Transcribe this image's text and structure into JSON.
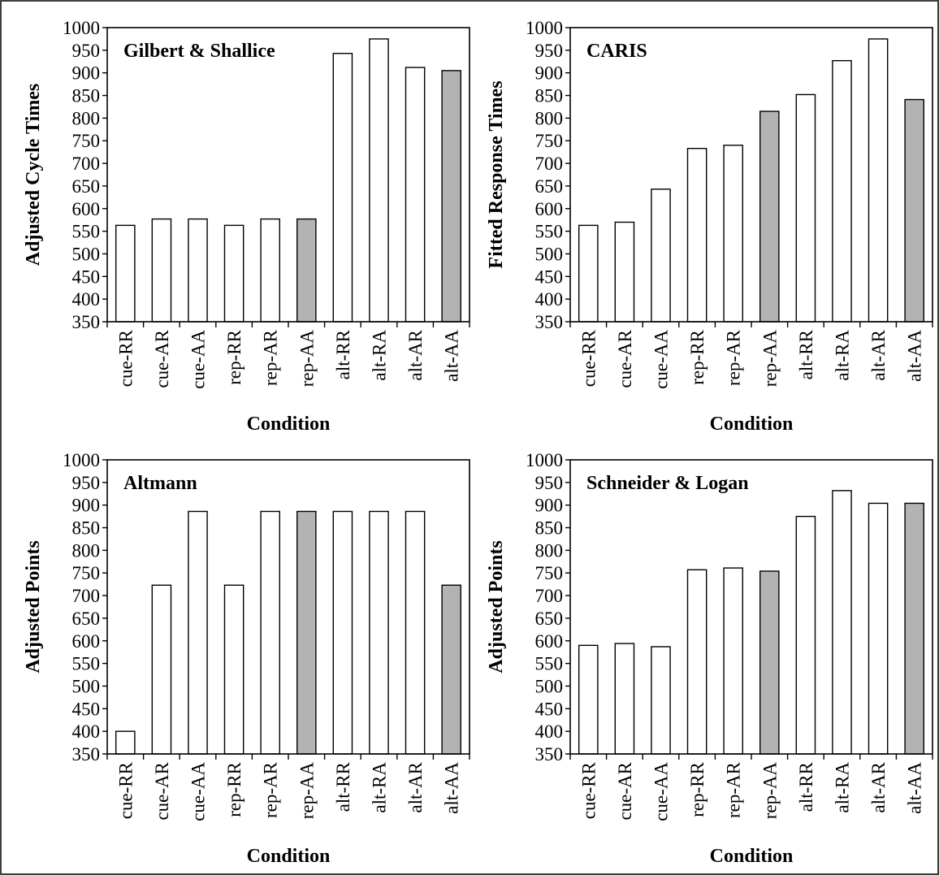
{
  "chart_data": [
    {
      "type": "bar",
      "title": "Gilbert & Shallice",
      "xlabel": "Condition",
      "ylabel": "Adjusted Cycle Times",
      "ylim": [
        350,
        1000
      ],
      "yticks": [
        350,
        400,
        450,
        500,
        550,
        600,
        650,
        700,
        750,
        800,
        850,
        900,
        950,
        1000
      ],
      "categories": [
        "cue-RR",
        "cue-AR",
        "cue-AA",
        "rep-RR",
        "rep-AR",
        "rep-AA",
        "alt-RR",
        "alt-RA",
        "alt-AR",
        "alt-AA"
      ],
      "values": [
        563,
        577,
        577,
        563,
        577,
        577,
        943,
        975,
        912,
        905
      ],
      "highlighted": [
        false,
        false,
        false,
        false,
        false,
        true,
        false,
        false,
        false,
        true
      ]
    },
    {
      "type": "bar",
      "title": "CARIS",
      "xlabel": "Condition",
      "ylabel": "Fitted Response Times",
      "ylim": [
        350,
        1000
      ],
      "yticks": [
        350,
        400,
        450,
        500,
        550,
        600,
        650,
        700,
        750,
        800,
        850,
        900,
        950,
        1000
      ],
      "categories": [
        "cue-RR",
        "cue-AR",
        "cue-AA",
        "rep-RR",
        "rep-AR",
        "rep-AA",
        "alt-RR",
        "alt-RA",
        "alt-AR",
        "alt-AA"
      ],
      "values": [
        563,
        570,
        643,
        733,
        740,
        815,
        852,
        927,
        975,
        841
      ],
      "highlighted": [
        false,
        false,
        false,
        false,
        false,
        true,
        false,
        false,
        false,
        true
      ]
    },
    {
      "type": "bar",
      "title": "Altmann",
      "xlabel": "Condition",
      "ylabel": "Adjusted Points",
      "ylim": [
        350,
        1000
      ],
      "yticks": [
        350,
        400,
        450,
        500,
        550,
        600,
        650,
        700,
        750,
        800,
        850,
        900,
        950,
        1000
      ],
      "categories": [
        "cue-RR",
        "cue-AR",
        "cue-AA",
        "rep-RR",
        "rep-AR",
        "rep-AA",
        "alt-RR",
        "alt-RA",
        "alt-AR",
        "alt-AA"
      ],
      "values": [
        400,
        723,
        886,
        723,
        886,
        886,
        886,
        886,
        886,
        723
      ],
      "highlighted": [
        false,
        false,
        false,
        false,
        false,
        true,
        false,
        false,
        false,
        true
      ]
    },
    {
      "type": "bar",
      "title": "Schneider & Logan",
      "xlabel": "Condition",
      "ylabel": "Adjusted Points",
      "ylim": [
        350,
        1000
      ],
      "yticks": [
        350,
        400,
        450,
        500,
        550,
        600,
        650,
        700,
        750,
        800,
        850,
        900,
        950,
        1000
      ],
      "categories": [
        "cue-RR",
        "cue-AR",
        "cue-AA",
        "rep-RR",
        "rep-AR",
        "rep-AA",
        "alt-RR",
        "alt-RA",
        "alt-AR",
        "alt-AA"
      ],
      "values": [
        590,
        594,
        587,
        757,
        761,
        754,
        875,
        932,
        904,
        904
      ],
      "highlighted": [
        false,
        false,
        false,
        false,
        false,
        true,
        false,
        false,
        false,
        true
      ]
    }
  ],
  "colors": {
    "bar_fill": "#ffffff",
    "bar_highlight": "#b3b3b3",
    "stroke": "#000000"
  }
}
